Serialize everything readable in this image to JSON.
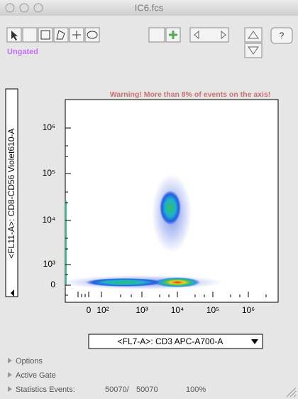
{
  "window": {
    "title": "IC6.fcs"
  },
  "toolbar": {
    "gate_label": "Ungated",
    "help": "?"
  },
  "plot": {
    "warning": "Warning! More than 8% of events on the axis!",
    "y_axis_label": "<FL11-A>: CD8-CD56 Violet610-A",
    "x_axis_label": "<FL7-A>: CD3 APC-A700-A",
    "yticks": [
      "10⁶",
      "10⁵",
      "10⁴",
      "10³",
      "0"
    ],
    "xticks": [
      "0",
      "10²",
      "10³",
      "10⁴",
      "10⁵",
      "10⁶"
    ]
  },
  "panel": {
    "options": "Options",
    "active_gate": "Active Gate",
    "statistics": {
      "label": "Statistics Events:",
      "count": "50070/",
      "total": "50070",
      "percent": "100%"
    }
  }
}
